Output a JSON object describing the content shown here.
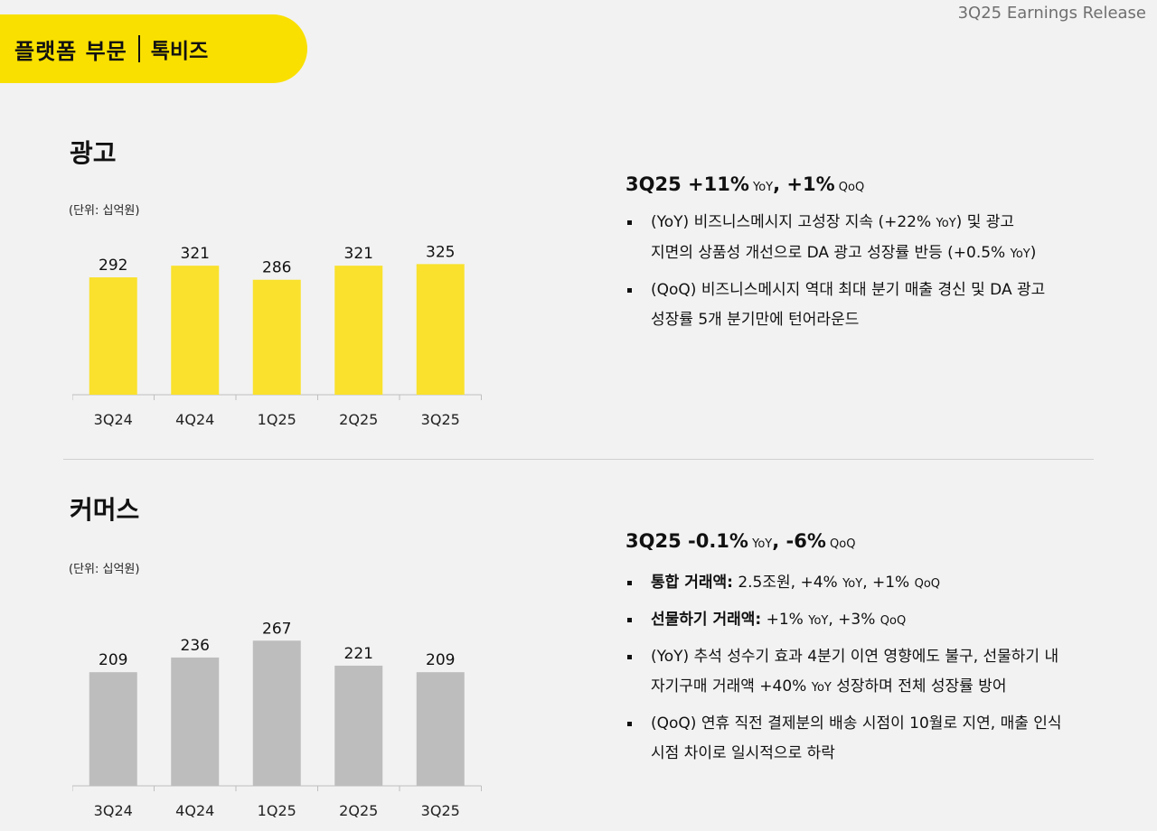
{
  "header": {
    "release": "3Q25 Earnings Release",
    "banner_main": "플랫폼 부문",
    "banner_sub": "톡비즈"
  },
  "ads": {
    "title": "광고",
    "unit": "(단위: 십억원)",
    "headline": {
      "p1": "3Q25 +11%",
      "s1": " YoY",
      "p2": ", +1%",
      "s2": " QoQ"
    },
    "bullets": [
      {
        "line1": [
          "(YoY) 비즈니스메시지 고성장 지속 (+22% ",
          {
            "small": "YoY"
          },
          ") 및 광고"
        ],
        "line2": [
          "지면의 상품성 개선으로 DA 광고 성장률 반등 (+0.5% ",
          {
            "small": "YoY"
          },
          ")"
        ]
      },
      {
        "line1": [
          "(QoQ) 비즈니스메시지 역대 최대 분기 매출 경신 및 DA 광고"
        ],
        "line2": [
          "성장률  5개 분기만에 턴어라운드"
        ]
      }
    ]
  },
  "commerce": {
    "title": "커머스",
    "unit": "(단위: 십억원)",
    "headline": {
      "p1": "3Q25 -0.1%",
      "s1": " YoY",
      "p2": ", -6%",
      "s2": " QoQ"
    },
    "bullets": [
      {
        "line1": [
          {
            "bold": "통합 거래액:"
          },
          " 2.5조원, +4% ",
          {
            "small": "YoY"
          },
          ", +1% ",
          {
            "small": "QoQ"
          }
        ]
      },
      {
        "line1": [
          {
            "bold": "선물하기 거래액:"
          },
          " +1% ",
          {
            "small": "YoY"
          },
          ", +3% ",
          {
            "small": "QoQ"
          }
        ]
      },
      {
        "line1": [
          "(YoY)  추석 성수기 효과 4분기 이연 영향에도 불구, 선물하기 내"
        ],
        "line2": [
          "자기구매 거래액 +40% ",
          {
            "small": "YoY"
          },
          " 성장하며 전체 성장률 방어"
        ]
      },
      {
        "line1": [
          "(QoQ) 연휴 직전 결제분의 배송 시점이 10월로 지연, 매출 인식"
        ],
        "line2": [
          "시점 차이로 일시적으로 하락"
        ]
      }
    ]
  },
  "chart_data": [
    {
      "type": "bar",
      "categories": [
        "3Q24",
        "4Q24",
        "1Q25",
        "2Q25",
        "3Q25"
      ],
      "values": [
        292,
        321,
        286,
        321,
        325
      ],
      "color": "#f9e12d"
    },
    {
      "type": "bar",
      "categories": [
        "3Q24",
        "4Q24",
        "1Q25",
        "2Q25",
        "3Q25"
      ],
      "values": [
        209,
        236,
        267,
        221,
        209
      ],
      "color": "#bdbdbd"
    }
  ]
}
